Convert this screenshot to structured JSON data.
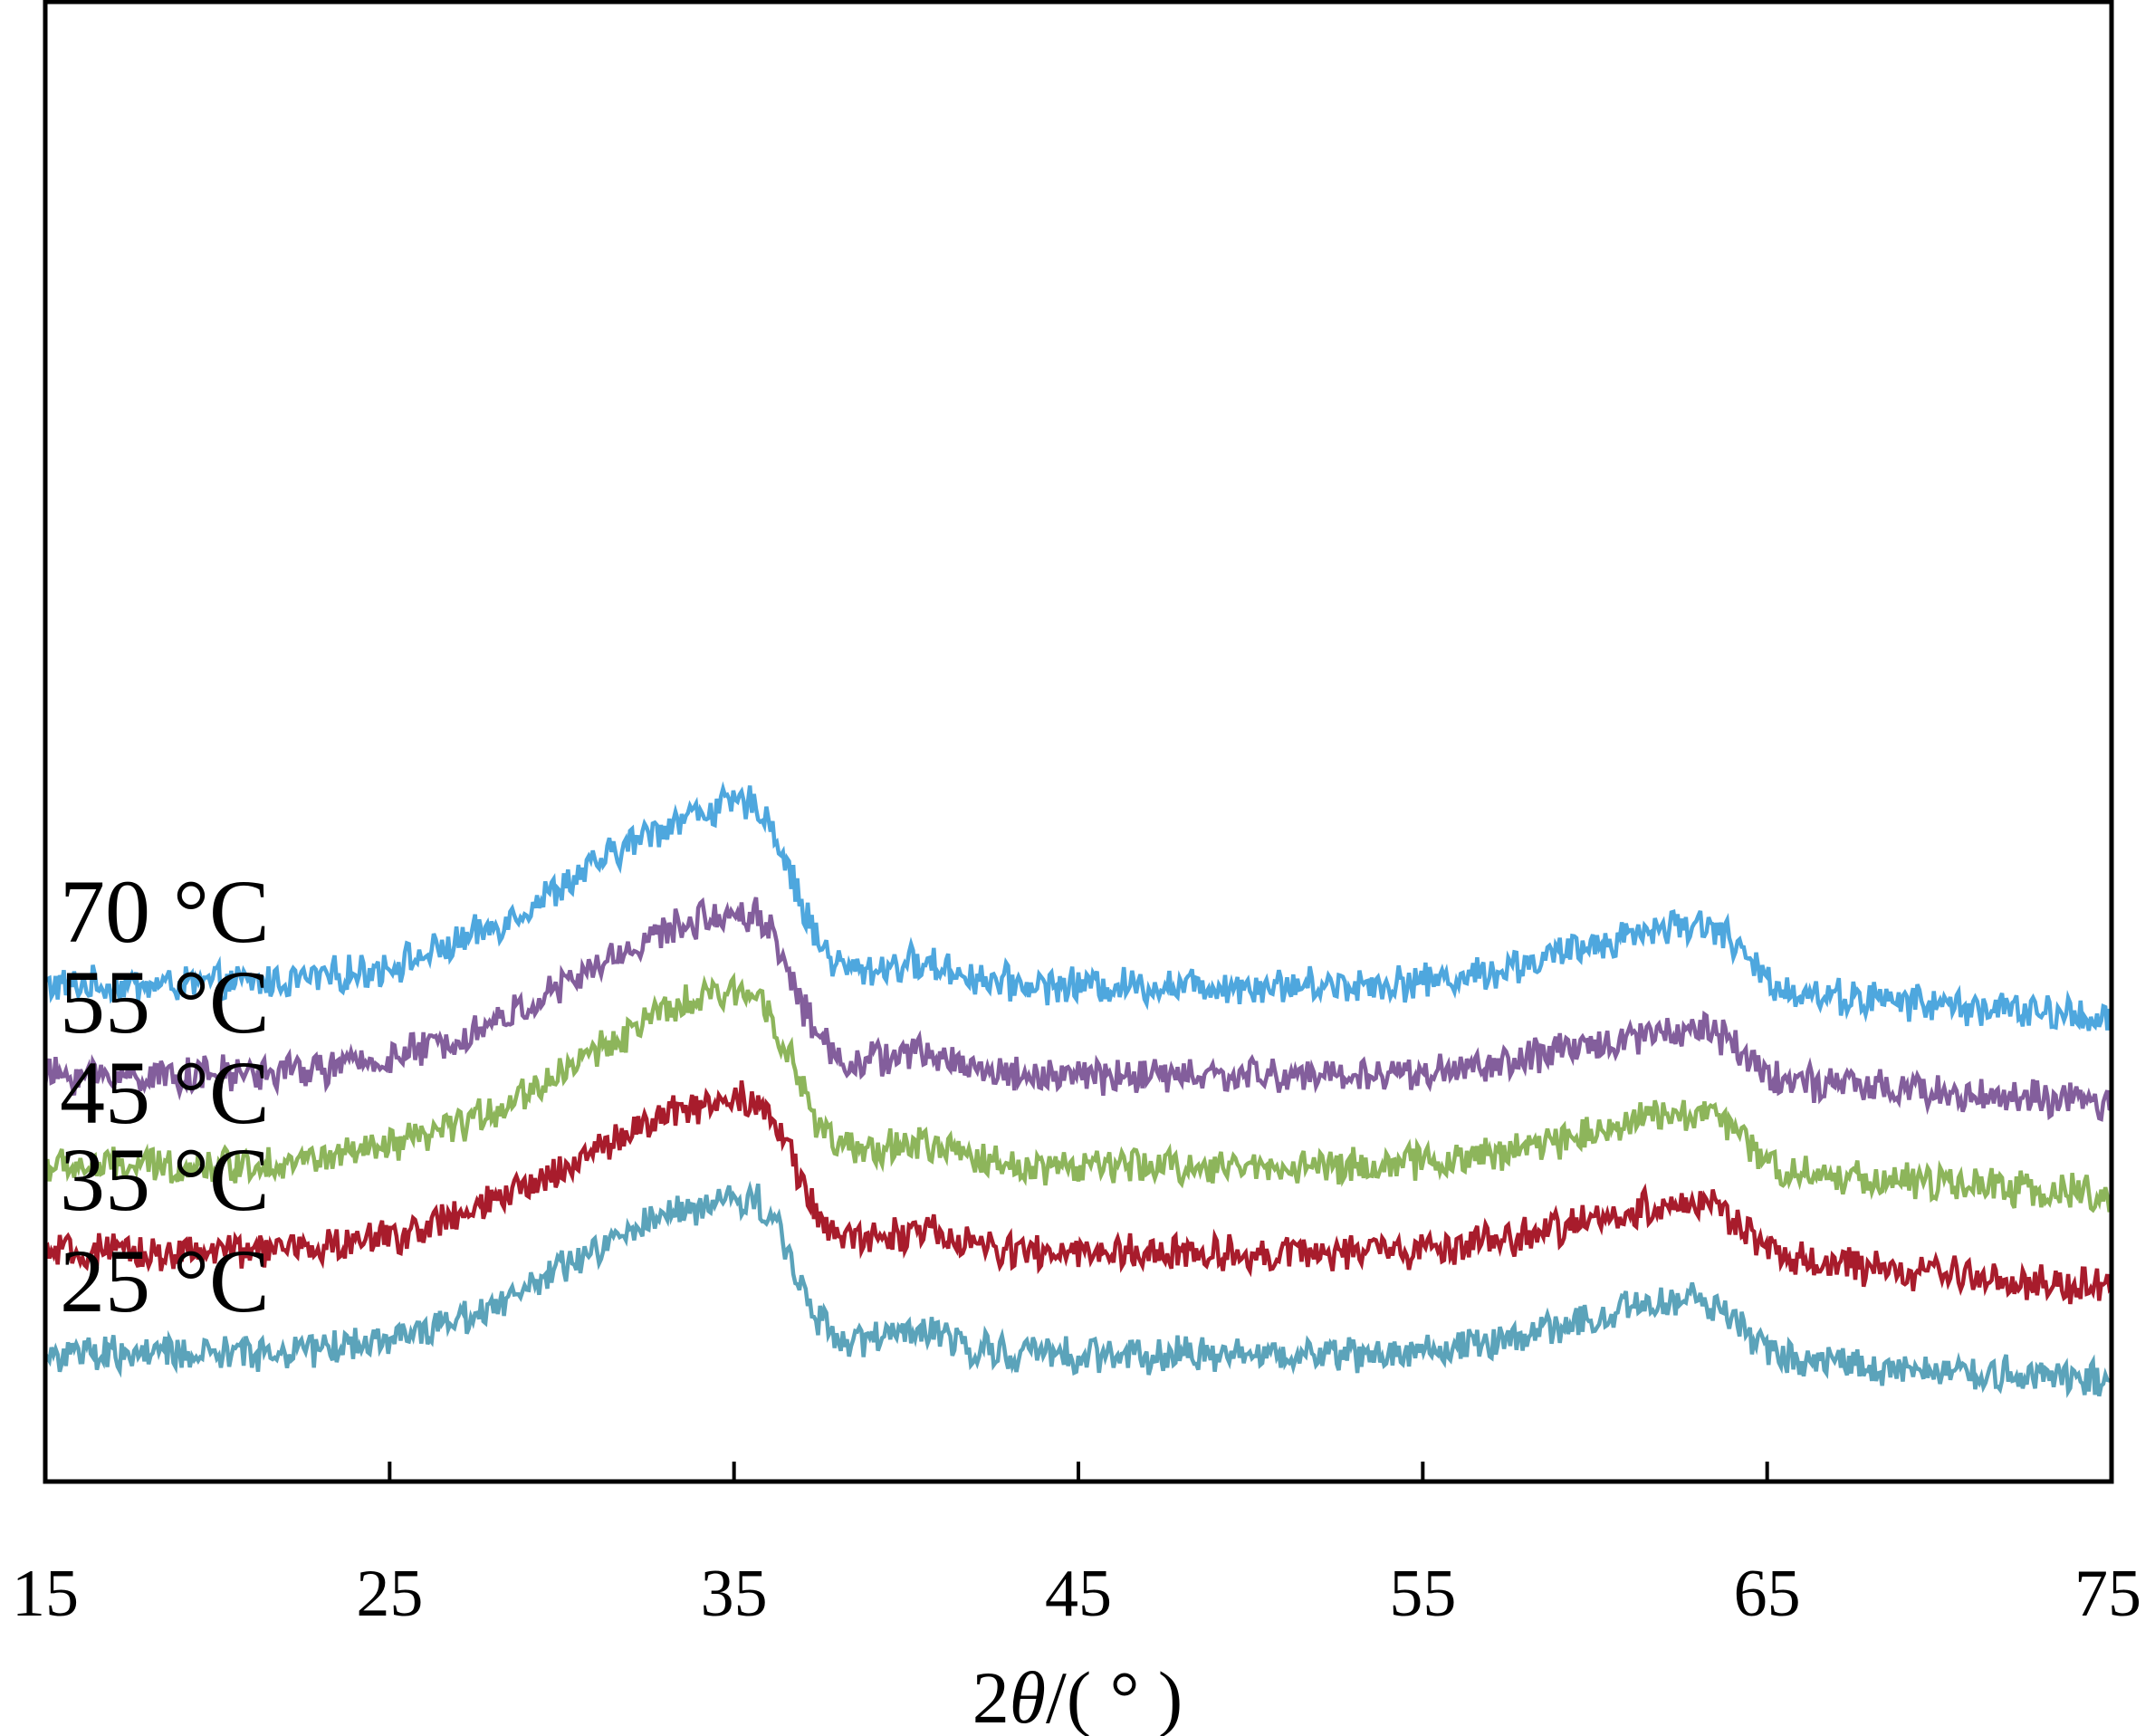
{
  "chart_data": {
    "type": "line",
    "xlabel": {
      "base": "2",
      "theta": "θ",
      "rest": "/( ° )"
    },
    "xlim": [
      15,
      75
    ],
    "xticks": [
      "15",
      "25",
      "35",
      "45",
      "55",
      "65",
      "75"
    ],
    "ylabel": "",
    "yaxis_ticks": false,
    "grid": false,
    "legend": "none",
    "series": [
      {
        "name": "70 °C",
        "color": "#4EA7DE",
        "baseline": 0.78,
        "peak1": 0.5,
        "peak2": 0.17,
        "tail": -0.09
      },
      {
        "name": "55 °C",
        "color": "#835E9C",
        "baseline": 0.53,
        "peak1": 0.45,
        "peak2": 0.13,
        "tail": -0.08
      },
      {
        "name": "45 °C",
        "color": "#8DB55B",
        "baseline": 0.28,
        "peak1": 0.48,
        "peak2": 0.15,
        "tail": -0.08
      },
      {
        "name": "35 °C",
        "color": "#A81C2C",
        "baseline": 0.04,
        "peak1": 0.43,
        "peak2": 0.14,
        "tail": -0.1
      },
      {
        "name": "25 °C",
        "color": "#5BA3BA",
        "baseline": -0.24,
        "peak1": 0.43,
        "peak2": 0.15,
        "tail": -0.07
      }
    ]
  }
}
